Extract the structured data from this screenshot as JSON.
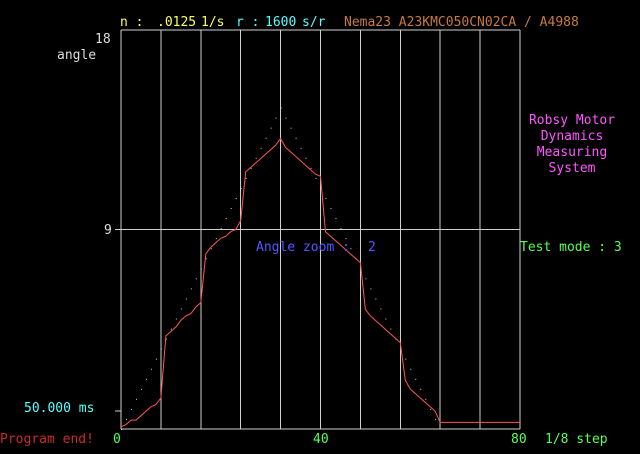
{
  "header": {
    "n_label": "n :",
    "n_value": ".0125",
    "n_unit": "1/s",
    "r_label": "r :",
    "r_value": "1600",
    "r_unit": "s/r",
    "motor": "Nema23 A23KMC050CN02CA / A4988"
  },
  "plot": {
    "y_top": "18",
    "y_mid": "9",
    "y_axis_label": "angle",
    "y_bottom_label": "50.000 ms",
    "x_ticks": [
      "0",
      "40",
      "80"
    ],
    "x_unit": "1/8 step",
    "zoom_label": "Angle zoom :",
    "zoom_value": "2"
  },
  "side": {
    "title_lines": [
      "Robsy Motor",
      "Dynamics",
      "Measuring",
      "System"
    ],
    "test_mode": "Test mode : 3"
  },
  "status": "Program end!",
  "colors": {
    "yellow": "#ffff55",
    "cyan": "#55ffff",
    "orange": "#c87a3c",
    "magenta": "#ff55ff",
    "blue": "#5555ff",
    "green": "#55ff55",
    "red": "#cc2a2a",
    "trace": "#ff5555",
    "grid": "#cfcfcf"
  },
  "chart_data": {
    "type": "line",
    "x_range": [
      0,
      80
    ],
    "y_range": [
      0,
      18
    ],
    "measured": [
      [
        0,
        0.1
      ],
      [
        1,
        0.2
      ],
      [
        2,
        0.4
      ],
      [
        3,
        0.4
      ],
      [
        4,
        0.6
      ],
      [
        5,
        0.8
      ],
      [
        6,
        1.0
      ],
      [
        7,
        1.1
      ],
      [
        8,
        1.4
      ],
      [
        9,
        4.2
      ],
      [
        10,
        4.4
      ],
      [
        11,
        4.6
      ],
      [
        12,
        4.9
      ],
      [
        13,
        5.1
      ],
      [
        14,
        5.2
      ],
      [
        15,
        5.5
      ],
      [
        16,
        5.7
      ],
      [
        17,
        7.9
      ],
      [
        18,
        8.2
      ],
      [
        19,
        8.4
      ],
      [
        20,
        8.6
      ],
      [
        21,
        8.7
      ],
      [
        22,
        8.9
      ],
      [
        23,
        9.0
      ],
      [
        24,
        9.4
      ],
      [
        25,
        11.6
      ],
      [
        26,
        11.8
      ],
      [
        27,
        12.0
      ],
      [
        28,
        12.2
      ],
      [
        29,
        12.4
      ],
      [
        30,
        12.6
      ],
      [
        31,
        12.8
      ],
      [
        32,
        13.1
      ],
      [
        33,
        12.7
      ],
      [
        34,
        12.5
      ],
      [
        35,
        12.3
      ],
      [
        36,
        12.1
      ],
      [
        37,
        11.9
      ],
      [
        38,
        11.7
      ],
      [
        39,
        11.5
      ],
      [
        40,
        11.4
      ],
      [
        41,
        8.9
      ],
      [
        42,
        8.7
      ],
      [
        43,
        8.5
      ],
      [
        44,
        8.3
      ],
      [
        45,
        8.1
      ],
      [
        46,
        7.9
      ],
      [
        47,
        7.7
      ],
      [
        48,
        7.5
      ],
      [
        49,
        5.4
      ],
      [
        50,
        5.1
      ],
      [
        51,
        4.9
      ],
      [
        52,
        4.7
      ],
      [
        53,
        4.5
      ],
      [
        54,
        4.3
      ],
      [
        55,
        4.1
      ],
      [
        56,
        3.9
      ],
      [
        57,
        2.2
      ],
      [
        58,
        1.8
      ],
      [
        59,
        1.6
      ],
      [
        60,
        1.4
      ],
      [
        61,
        1.2
      ],
      [
        62,
        1.0
      ],
      [
        63,
        0.8
      ],
      [
        64,
        0.3
      ],
      [
        65,
        0.3
      ],
      [
        80,
        0.3
      ]
    ],
    "reference": [
      [
        0,
        0
      ],
      [
        32,
        14.5
      ],
      [
        64,
        0
      ]
    ]
  }
}
